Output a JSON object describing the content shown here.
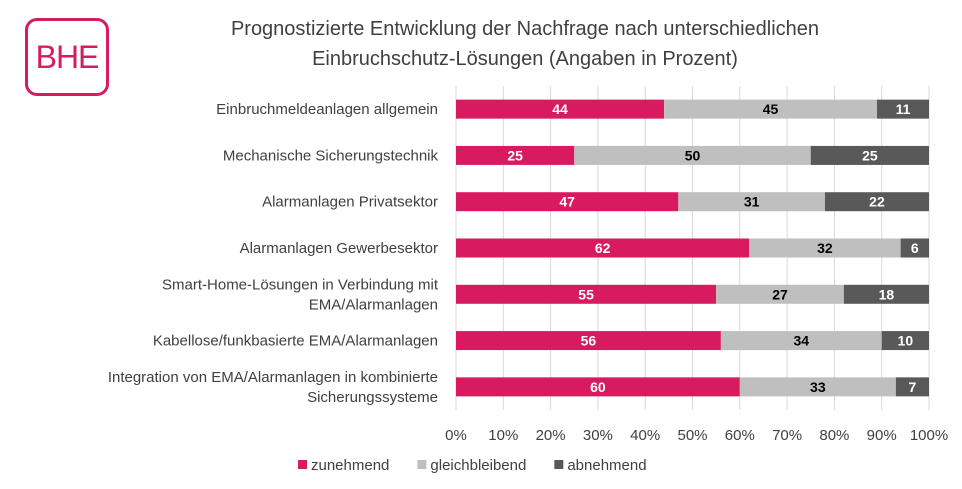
{
  "logo": {
    "text": "BHE"
  },
  "chart_data": {
    "type": "bar",
    "orientation": "horizontal",
    "stacked": "percent",
    "title": "Prognostizierte Entwicklung der Nachfrage nach unterschiedlichen Einbruchschutz-Lösungen (Angaben in Prozent)",
    "title_lines": [
      "Prognostizierte Entwicklung der Nachfrage nach unterschiedlichen",
      "Einbruchschutz-Lösungen (Angaben in Prozent)"
    ],
    "categories": [
      [
        "Einbruchmeldeanlagen allgemein"
      ],
      [
        "Mechanische Sicherungstechnik"
      ],
      [
        "Alarmanlagen Privatsektor"
      ],
      [
        "Alarmanlagen Gewerbesektor"
      ],
      [
        "Smart-Home-Lösungen in Verbindung mit",
        "EMA/Alarmanlagen"
      ],
      [
        "Kabellose/funkbasierte EMA/Alarmanlagen"
      ],
      [
        "Integration von EMA/Alarmanlagen in kombinierte",
        "Sicherungssysteme"
      ]
    ],
    "series": [
      {
        "name": "zunehmend",
        "color": "#d81b60",
        "label_color": "#ffffff",
        "values": [
          44,
          25,
          47,
          62,
          55,
          56,
          60
        ]
      },
      {
        "name": "gleichbleibend",
        "color": "#bfbfbf",
        "label_color": "#000000",
        "values": [
          45,
          50,
          31,
          32,
          27,
          34,
          33
        ]
      },
      {
        "name": "abnehmend",
        "color": "#595959",
        "label_color": "#ffffff",
        "values": [
          11,
          25,
          22,
          6,
          18,
          10,
          7
        ]
      }
    ],
    "xlim": [
      0,
      100
    ],
    "xticks": [
      "0%",
      "10%",
      "20%",
      "30%",
      "40%",
      "50%",
      "60%",
      "70%",
      "80%",
      "90%",
      "100%"
    ],
    "grid": true,
    "legend_position": "bottom"
  }
}
